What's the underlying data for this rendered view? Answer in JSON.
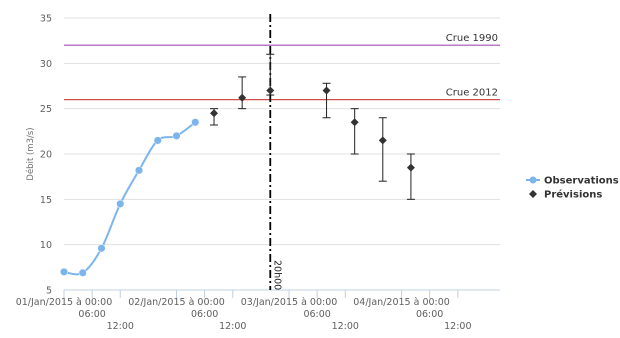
{
  "chart_data": {
    "type": "line",
    "title": "",
    "xlabel": "",
    "ylabel": "Débit (m3/s)",
    "ylim": [
      5,
      35
    ],
    "yticks": [
      5,
      10,
      15,
      20,
      25,
      30,
      35
    ],
    "xlim": [
      "2015-01-01T00:00",
      "2015-01-04T21:00"
    ],
    "xticks": [
      {
        "t": "2015-01-01T00:00",
        "label": "01/Jan/2015 à 00:00",
        "row": 0
      },
      {
        "t": "2015-01-01T06:00",
        "label": "06:00",
        "row": 1
      },
      {
        "t": "2015-01-01T12:00",
        "label": "12:00",
        "row": 2
      },
      {
        "t": "2015-01-02T00:00",
        "label": "02/Jan/2015 à 00:00",
        "row": 0
      },
      {
        "t": "2015-01-02T06:00",
        "label": "06:00",
        "row": 1
      },
      {
        "t": "2015-01-02T12:00",
        "label": "12:00",
        "row": 2
      },
      {
        "t": "2015-01-03T00:00",
        "label": "03/Jan/2015 à 00:00",
        "row": 0
      },
      {
        "t": "2015-01-03T06:00",
        "label": "06:00",
        "row": 1
      },
      {
        "t": "2015-01-03T12:00",
        "label": "12:00",
        "row": 2
      },
      {
        "t": "2015-01-04T00:00",
        "label": "04/Jan/2015 à 00:00",
        "row": 0
      },
      {
        "t": "2015-01-04T06:00",
        "label": "06:00",
        "row": 1
      },
      {
        "t": "2015-01-04T12:00",
        "label": "12:00",
        "row": 2
      }
    ],
    "grid": true,
    "legend_position": "right",
    "reference_lines": [
      {
        "label": "Crue 1990",
        "value": 32,
        "color": "#a050b0"
      },
      {
        "label": "Crue 2012",
        "value": 26,
        "color": "#d05050"
      }
    ],
    "current_time_marker": {
      "t": "2015-01-02T20:00",
      "label": "20h00"
    },
    "series": [
      {
        "name": "Observations",
        "color": "#7cb5ec",
        "marker": "circle",
        "points": [
          {
            "t": "2015-01-01T00:00",
            "y": 7.0
          },
          {
            "t": "2015-01-01T04:00",
            "y": 6.9
          },
          {
            "t": "2015-01-01T08:00",
            "y": 9.6
          },
          {
            "t": "2015-01-01T12:00",
            "y": 14.5
          },
          {
            "t": "2015-01-01T16:00",
            "y": 18.2
          },
          {
            "t": "2015-01-01T20:00",
            "y": 21.5
          },
          {
            "t": "2015-01-02T00:00",
            "y": 22.0
          },
          {
            "t": "2015-01-02T04:00",
            "y": 23.5
          }
        ]
      },
      {
        "name": "Prévisions",
        "color": "#333333",
        "marker": "diamond",
        "points": [
          {
            "t": "2015-01-02T08:00",
            "y": 24.5,
            "low": 23.2,
            "high": 25.0
          },
          {
            "t": "2015-01-02T14:00",
            "y": 26.2,
            "low": 25.0,
            "high": 28.5
          },
          {
            "t": "2015-01-02T20:00",
            "y": 27.0,
            "low": 26.5,
            "high": 31.0
          },
          {
            "t": "2015-01-03T08:00",
            "y": 27.0,
            "low": 24.0,
            "high": 27.8
          },
          {
            "t": "2015-01-03T14:00",
            "y": 23.5,
            "low": 20.0,
            "high": 25.0
          },
          {
            "t": "2015-01-03T20:00",
            "y": 21.5,
            "low": 17.0,
            "high": 24.0
          },
          {
            "t": "2015-01-04T02:00",
            "y": 18.5,
            "low": 15.0,
            "high": 20.0
          }
        ]
      }
    ]
  }
}
